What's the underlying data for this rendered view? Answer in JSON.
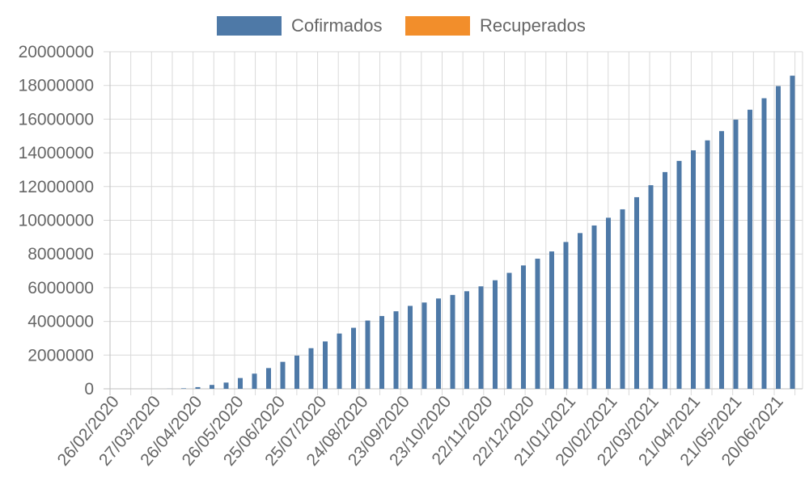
{
  "chart_data": {
    "type": "bar",
    "legend_placement": "top",
    "grid": true,
    "ylim": [
      0,
      20000000
    ],
    "y_ticks": [
      0,
      2000000,
      4000000,
      6000000,
      8000000,
      10000000,
      12000000,
      14000000,
      16000000,
      18000000,
      20000000
    ],
    "x_tick_labels": [
      "26/02/2020",
      "27/03/2020",
      "26/04/2020",
      "26/05/2020",
      "25/06/2020",
      "25/07/2020",
      "24/08/2020",
      "23/09/2020",
      "23/10/2020",
      "22/11/2020",
      "22/12/2020",
      "21/01/2021",
      "20/02/2021",
      "22/03/2021",
      "21/04/2021",
      "21/05/2021",
      "20/06/2021"
    ],
    "series": [
      {
        "name": "Cofirmados",
        "color": "#4e79a7",
        "values": [
          0,
          1,
          100,
          1000,
          6000,
          30000,
          100000,
          230000,
          370000,
          640000,
          900000,
          1230000,
          1600000,
          1970000,
          2410000,
          2810000,
          3280000,
          3620000,
          4050000,
          4320000,
          4600000,
          4920000,
          5120000,
          5360000,
          5570000,
          5790000,
          6080000,
          6440000,
          6880000,
          7320000,
          7720000,
          8150000,
          8710000,
          9240000,
          9690000,
          10150000,
          10650000,
          11370000,
          12080000,
          12860000,
          13520000,
          14150000,
          14740000,
          15290000,
          15970000,
          16560000,
          17240000,
          17960000,
          18580000
        ]
      },
      {
        "name": "Recuperados",
        "color": "#f28e2b",
        "values": []
      }
    ]
  }
}
